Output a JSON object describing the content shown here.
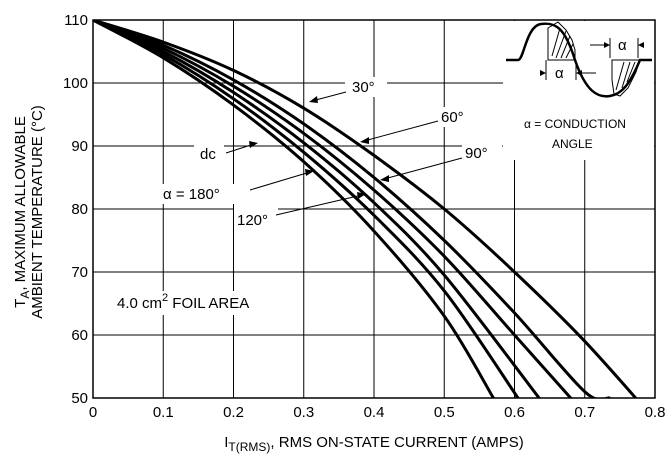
{
  "chart_data": {
    "type": "line",
    "x_axis": {
      "label_main": "I",
      "label_sub": "T(RMS)",
      "label_rest": ", RMS ON-STATE CURRENT (AMPS)",
      "ticks": [
        "0",
        "0.1",
        "0.2",
        "0.3",
        "0.4",
        "0.5",
        "0.6",
        "0.7",
        "0.8"
      ],
      "xlim": [
        0,
        0.8
      ]
    },
    "y_axis": {
      "label_line1_main": "T",
      "label_line1_sub": "A",
      "label_line1_rest": ", MAXIMUM ALLOWABLE",
      "label_line2": "AMBIENT TEMPERATURE (°C)",
      "ticks": [
        "50",
        "60",
        "70",
        "80",
        "90",
        "100",
        "110"
      ],
      "ylim": [
        50,
        110
      ]
    },
    "grid": true,
    "series": [
      {
        "name": "dc",
        "x": [
          0,
          0.1,
          0.2,
          0.3,
          0.4,
          0.5,
          0.57
        ],
        "y": [
          110,
          104,
          96.5,
          87.5,
          76.5,
          63,
          50
        ]
      },
      {
        "name": "180°",
        "x": [
          0,
          0.1,
          0.2,
          0.3,
          0.4,
          0.5,
          0.605
        ],
        "y": [
          110,
          104.5,
          97.5,
          89,
          79,
          67,
          50
        ]
      },
      {
        "name": "120°",
        "x": [
          0,
          0.1,
          0.2,
          0.3,
          0.4,
          0.5,
          0.635
        ],
        "y": [
          110,
          105,
          98.5,
          90.5,
          81,
          69.5,
          50
        ]
      },
      {
        "name": "90°",
        "x": [
          0,
          0.1,
          0.2,
          0.3,
          0.4,
          0.5,
          0.6,
          0.68
        ],
        "y": [
          110,
          105.5,
          99.5,
          92,
          83,
          72.5,
          60,
          50
        ]
      },
      {
        "name": "60°",
        "x": [
          0,
          0.1,
          0.2,
          0.3,
          0.4,
          0.5,
          0.6,
          0.7,
          0.735
        ],
        "y": [
          110,
          106,
          100.5,
          93.5,
          85,
          75,
          63.5,
          51,
          50
        ]
      },
      {
        "name": "30°",
        "x": [
          0,
          0.1,
          0.2,
          0.3,
          0.4,
          0.5,
          0.6,
          0.7,
          0.8
        ],
        "y": [
          110,
          106.5,
          102,
          96,
          88.5,
          80,
          70,
          59,
          46.5
        ]
      }
    ],
    "annotations": {
      "dc": "dc",
      "a180": "α = 180°",
      "a120": "120°",
      "a90": "90°",
      "a60": "60°",
      "a30": "30°",
      "foil_main": "4.0 cm",
      "foil_sup": "2",
      "foil_rest": " FOIL AREA",
      "alpha": "α",
      "cond_line1": "α = CONDUCTION",
      "cond_line2": "ANGLE"
    }
  }
}
